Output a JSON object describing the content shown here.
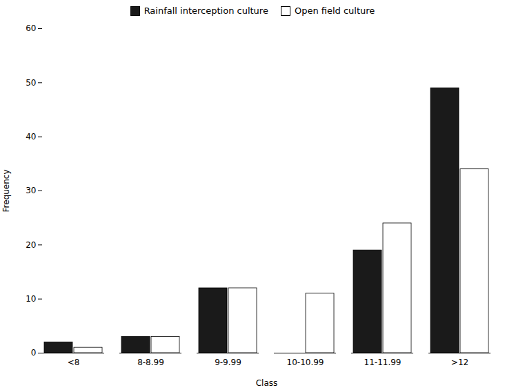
{
  "chart_data": {
    "type": "bar",
    "categories": [
      "<8",
      "8-8.99",
      "9-9.99",
      "10-10.99",
      "11-11.99",
      ">12"
    ],
    "series": [
      {
        "name": "Rainfall interception culture",
        "color": "#1a1a1a",
        "values": [
          2,
          3,
          12,
          0,
          19,
          49
        ]
      },
      {
        "name": "Open field culture",
        "color": "#ffffff",
        "values": [
          1,
          3,
          12,
          11,
          24,
          34
        ]
      }
    ],
    "xlabel": "Class",
    "ylabel": "Frequency",
    "ylim": [
      0,
      60
    ],
    "yticks": [
      0,
      10,
      20,
      30,
      40,
      50,
      60
    ],
    "legend": "top",
    "grid": false
  }
}
